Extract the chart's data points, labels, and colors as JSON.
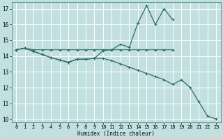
{
  "xlabel": "Humidex (Indice chaleur)",
  "bg_color": "#c2e0e0",
  "grid_color": "#ffffff",
  "line_color": "#2e6e65",
  "xlim": [
    -0.5,
    23.5
  ],
  "ylim": [
    9.8,
    17.4
  ],
  "xticks": [
    0,
    1,
    2,
    3,
    4,
    5,
    6,
    7,
    8,
    9,
    10,
    11,
    12,
    13,
    14,
    15,
    16,
    17,
    18,
    19,
    20,
    21,
    22,
    23
  ],
  "yticks": [
    10,
    11,
    12,
    13,
    14,
    15,
    16,
    17
  ],
  "curve_flat_x": [
    0,
    1,
    2,
    3,
    4,
    5,
    6,
    7,
    8,
    9,
    10,
    11,
    12,
    13,
    14,
    15,
    16,
    17,
    18
  ],
  "curve_flat_y": [
    14.4,
    14.5,
    14.4,
    14.4,
    14.4,
    14.4,
    14.4,
    14.4,
    14.4,
    14.4,
    14.4,
    14.4,
    14.4,
    14.4,
    14.4,
    14.4,
    14.4,
    14.4,
    14.4
  ],
  "curve_upper_x": [
    0,
    1,
    2,
    3,
    4,
    5,
    6,
    7,
    8,
    9,
    10,
    11,
    12,
    13,
    14,
    15,
    16,
    17,
    18
  ],
  "curve_upper_y": [
    14.4,
    14.5,
    14.3,
    14.1,
    13.9,
    13.75,
    13.6,
    13.8,
    13.8,
    13.85,
    14.35,
    14.4,
    14.75,
    14.55,
    16.1,
    17.2,
    16.0,
    17.0,
    16.3
  ],
  "curve_lower_x": [
    0,
    1,
    2,
    3,
    4,
    5,
    6,
    7,
    8,
    9,
    10,
    11,
    12,
    13,
    14,
    15,
    16,
    17,
    18,
    19,
    20,
    21,
    22,
    23
  ],
  "curve_lower_y": [
    14.4,
    14.5,
    14.3,
    14.1,
    13.9,
    13.75,
    13.6,
    13.8,
    13.8,
    13.85,
    13.85,
    13.7,
    13.5,
    13.3,
    13.1,
    12.9,
    12.7,
    12.5,
    12.2,
    12.5,
    12.0,
    11.1,
    10.2,
    10.0
  ]
}
